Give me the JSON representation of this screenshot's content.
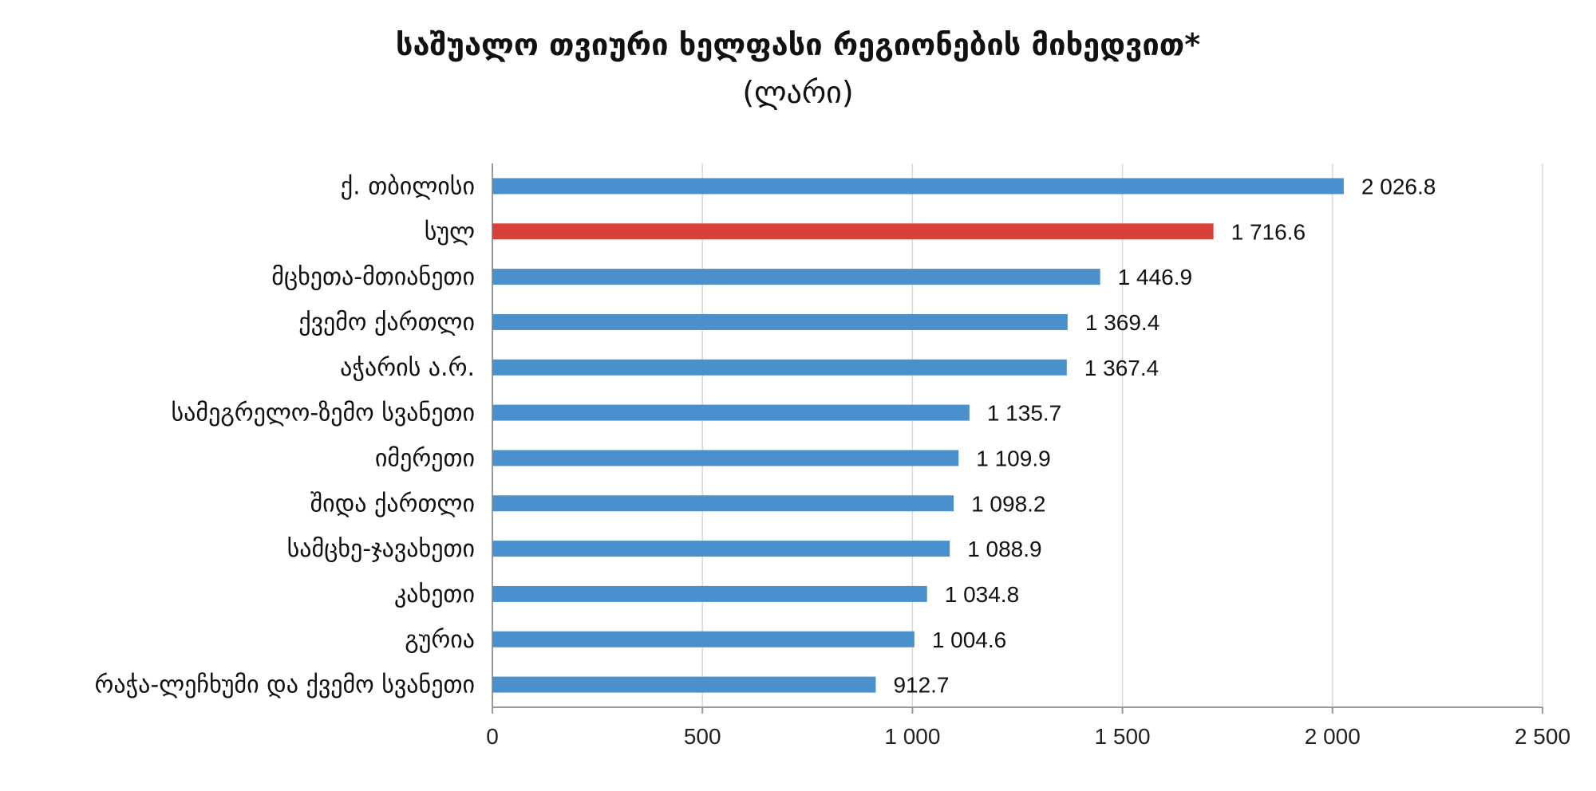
{
  "chart_data": {
    "type": "bar",
    "orientation": "horizontal",
    "title": "საშუალო თვიური ხელფასი რეგიონების მიხედვით*",
    "subtitle": "(ლარი)",
    "categories": [
      "ქ. თბილისი",
      "სულ",
      "მცხეთა-მთიანეთი",
      "ქვემო ქართლი",
      "აჭარის ა.რ.",
      "სამეგრელო-ზემო სვანეთი",
      "იმერეთი",
      "შიდა ქართლი",
      "სამცხე-ჯავახეთი",
      "კახეთი",
      "გურია",
      "რაჭა-ლეჩხუმი და ქვემო სვანეთი"
    ],
    "values": [
      2026.8,
      1716.6,
      1446.9,
      1369.4,
      1367.4,
      1135.7,
      1109.9,
      1098.2,
      1088.9,
      1034.8,
      1004.6,
      912.7
    ],
    "value_labels": [
      "2 026.8",
      "1 716.6",
      "1 446.9",
      "1 369.4",
      "1 367.4",
      "1 135.7",
      "1 109.9",
      "1 098.2",
      "1 088.9",
      "1 034.8",
      "1 004.6",
      "912.7"
    ],
    "xlim": [
      0,
      2500
    ],
    "ticks": [
      0,
      500,
      1000,
      1500,
      2000,
      2500
    ],
    "tick_labels": [
      "0",
      "500",
      "1 000",
      "1 500",
      "2 000",
      "2 500"
    ],
    "colors": {
      "default": "#4A90CC",
      "highlight": "#D9403A"
    },
    "highlight_index": 1,
    "grid": true,
    "legend": false
  }
}
